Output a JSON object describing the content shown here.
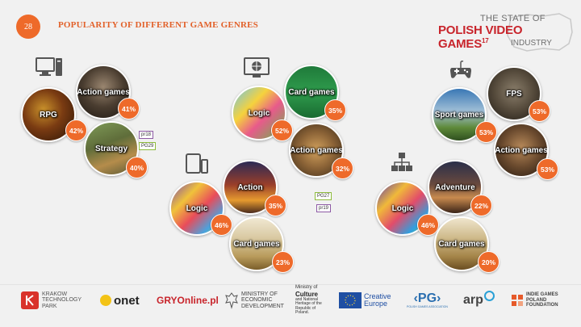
{
  "header": {
    "page_number": "28",
    "title": "POPULARITY OF DIFFERENT GAME GENRES",
    "brand_line1": "THE STATE OF",
    "brand_line2": "POLISH VIDEO GAMES",
    "brand_sup": "17",
    "brand_line3": "INDUSTRY"
  },
  "colors": {
    "accent": "#ee6a2a",
    "brand_red": "#c8242b",
    "background": "#f1f1f1"
  },
  "platforms": [
    {
      "name": "pc",
      "icon": "desktop-computer-icon",
      "genres": [
        {
          "label": "RPG",
          "pct": "42%"
        },
        {
          "label": "Action games",
          "pct": "41%"
        },
        {
          "label": "Strategy",
          "pct": "40%"
        }
      ],
      "tags": [
        "pr18",
        "PG29"
      ]
    },
    {
      "name": "web",
      "icon": "web-browser-icon",
      "genres": [
        {
          "label": "Logic",
          "pct": "52%"
        },
        {
          "label": "Card games",
          "pct": "35%"
        },
        {
          "label": "Action games",
          "pct": "32%"
        }
      ]
    },
    {
      "name": "mobile",
      "icon": "tablet-phone-icon",
      "genres": [
        {
          "label": "Logic",
          "pct": "46%"
        },
        {
          "label": "Action",
          "pct": "35%"
        },
        {
          "label": "Card games",
          "pct": "23%"
        }
      ],
      "tags": [
        "PG27",
        "pr19"
      ]
    },
    {
      "name": "console",
      "icon": "gamepad-icon",
      "genres": [
        {
          "label": "Sport games",
          "pct": "53%"
        },
        {
          "label": "FPS",
          "pct": "53%"
        },
        {
          "label": "Action games",
          "pct": "53%"
        }
      ]
    },
    {
      "name": "social",
      "icon": "network-icon",
      "genres": [
        {
          "label": "Logic",
          "pct": "46%"
        },
        {
          "label": "Adventure",
          "pct": "22%"
        },
        {
          "label": "Card games",
          "pct": "20%"
        }
      ]
    }
  ],
  "footer": {
    "krakow": "KRAKOW TECHNOLOGY PARK",
    "onet": "onet",
    "gry": "GRYOnline.pl",
    "ministry_econ": "MINISTRY OF ECONOMIC DEVELOPMENT",
    "ministry_culture_pre": "Ministry of",
    "ministry_culture_main": "Culture",
    "ministry_culture_rest": "and National Heritage of the Republic of Poland.",
    "creative": "Creative Europe",
    "pg": "PG",
    "pg_sub": "POLISH GAMES ASSOCIATION",
    "arp": "arp",
    "igpf": "INDIE GAMES POLAND FOUNDATION"
  }
}
